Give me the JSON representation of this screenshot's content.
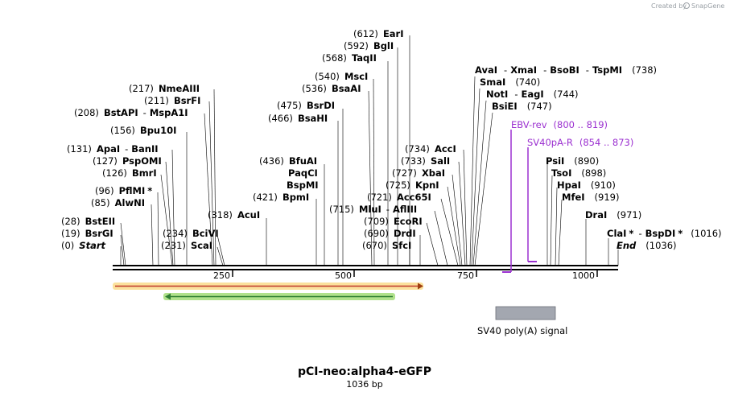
{
  "header": {
    "credit_prefix": "Created by",
    "brand": "SnapGene"
  },
  "map": {
    "title": "pCI-neo:alpha4-eGFP",
    "length_label": "1036 bp",
    "length": 1036,
    "ticks": [
      "250",
      "500",
      "750",
      "1000"
    ]
  },
  "sites": [
    {
      "id": "ear1",
      "pos": "(612)",
      "name": "EarI",
      "marker": ""
    },
    {
      "id": "bgl1",
      "pos": "(592)",
      "name": "BglI",
      "marker": ""
    },
    {
      "id": "taq2",
      "pos": "(568)",
      "name": "TaqII",
      "marker": ""
    },
    {
      "id": "msc1",
      "pos": "(540)",
      "name": "MscI",
      "marker": ""
    },
    {
      "id": "bsaa1",
      "pos": "(536)",
      "name": "BsaAI",
      "marker": ""
    },
    {
      "id": "bsrd1",
      "pos": "(475)",
      "name": "BsrDI",
      "marker": ""
    },
    {
      "id": "bsah1",
      "pos": "(466)",
      "name": "BsaHI",
      "marker": ""
    },
    {
      "id": "nmea3",
      "pos": "(217)",
      "name": "NmeAIII",
      "marker": ""
    },
    {
      "id": "bsrf1",
      "pos": "(211)",
      "name": "BsrFI",
      "marker": ""
    },
    {
      "id": "bstap1",
      "pos": "(208)",
      "name": "BstAPI",
      "marker": ""
    },
    {
      "id": "bpu10",
      "pos": "(156)",
      "name": "Bpu10I",
      "marker": ""
    },
    {
      "id": "apa1",
      "pos": "(131)",
      "name": "ApaI",
      "marker": ""
    },
    {
      "id": "pspom1",
      "pos": "(127)",
      "name": "PspOMI",
      "marker": ""
    },
    {
      "id": "bmr1",
      "pos": "(126)",
      "name": "BmrI",
      "marker": ""
    },
    {
      "id": "pflm1",
      "pos": "(96)",
      "name": "PflMI",
      "marker": "*"
    },
    {
      "id": "alwn1",
      "pos": "(85)",
      "name": "AlwNI",
      "marker": ""
    },
    {
      "id": "bste2",
      "pos": "(28)",
      "name": "BstEII",
      "marker": ""
    },
    {
      "id": "bsrg1",
      "pos": "(19)",
      "name": "BsrGI",
      "marker": ""
    },
    {
      "id": "start",
      "pos": "(0)",
      "name": "Start",
      "marker": ""
    },
    {
      "id": "bfua1",
      "pos": "(436)",
      "name": "BfuAI",
      "marker": ""
    },
    {
      "id": "bpm1",
      "pos": "(421)",
      "name": "BpmI",
      "marker": ""
    },
    {
      "id": "acu1",
      "pos": "(318)",
      "name": "AcuI",
      "marker": ""
    },
    {
      "id": "bcl5",
      "pos": "(234)",
      "name": "BciVI",
      "marker": ""
    },
    {
      "id": "sca1",
      "pos": "(231)",
      "name": "ScaI",
      "marker": ""
    },
    {
      "id": "acc1",
      "pos": "(734)",
      "name": "AccI",
      "marker": ""
    },
    {
      "id": "sal1",
      "pos": "(733)",
      "name": "SalI",
      "marker": ""
    },
    {
      "id": "xba1",
      "pos": "(727)",
      "name": "XbaI",
      "marker": ""
    },
    {
      "id": "kpn1",
      "pos": "(725)",
      "name": "KpnI",
      "marker": ""
    },
    {
      "id": "acc65",
      "pos": "(721)",
      "name": "Acc65I",
      "marker": ""
    },
    {
      "id": "mlu1",
      "pos": "(715)",
      "name": "MluI",
      "marker": ""
    },
    {
      "id": "ecor1",
      "pos": "(709)",
      "name": "EcoRI",
      "marker": ""
    },
    {
      "id": "drd1",
      "pos": "(690)",
      "name": "DrdI",
      "marker": ""
    },
    {
      "id": "sfc1",
      "pos": "(670)",
      "name": "SfcI",
      "marker": ""
    },
    {
      "id": "ava1",
      "pos": "(738)",
      "name": "AvaI",
      "marker": ""
    },
    {
      "id": "sma1",
      "pos": "(740)",
      "name": "SmaI",
      "marker": ""
    },
    {
      "id": "not1",
      "pos": "(744)",
      "name": "NotI",
      "marker": ""
    },
    {
      "id": "bsie1",
      "pos": "(747)",
      "name": "BsiEI",
      "marker": ""
    },
    {
      "id": "psi1",
      "pos": "(890)",
      "name": "PsiI",
      "marker": ""
    },
    {
      "id": "tso1",
      "pos": "(898)",
      "name": "TsoI",
      "marker": ""
    },
    {
      "id": "hpa1",
      "pos": "(910)",
      "name": "HpaI",
      "marker": ""
    },
    {
      "id": "mfe1",
      "pos": "(919)",
      "name": "MfeI",
      "marker": ""
    },
    {
      "id": "dra1",
      "pos": "(971)",
      "name": "DraI",
      "marker": ""
    },
    {
      "id": "cla1",
      "pos": "(1016)",
      "name": "ClaI",
      "marker": "*"
    },
    {
      "id": "end",
      "pos": "(1036)",
      "name": "End",
      "marker": ""
    }
  ],
  "multi_names": {
    "mspa1l": "MspA1I",
    "ban2": "BanII",
    "paqc1": "PaqCI",
    "bspm1": "BspMI",
    "afl3": "AflIII",
    "xma1": "XmaI",
    "bsob1": "BsoBI",
    "tspm1": "TspMI",
    "eag1": "EagI",
    "bspd1": "BspDI",
    "bspd1_marker": "*",
    "separator": "-"
  },
  "primers": [
    {
      "id": "ebv",
      "name": "EBV-rev",
      "range": "(800 .. 819)",
      "color": "#9b30d0"
    },
    {
      "id": "sv40",
      "name": "SV40pA-R",
      "range": "(854 .. 873)",
      "color": "#9b30d0"
    }
  ],
  "features": [
    {
      "id": "sv40polya",
      "name": "SV40 poly(A) signal",
      "color": "#a3a7b0"
    }
  ],
  "colors": {
    "orange_arrow": "#f5c84c",
    "green_arrow": "#8fd45a",
    "backbone": "#000000"
  }
}
